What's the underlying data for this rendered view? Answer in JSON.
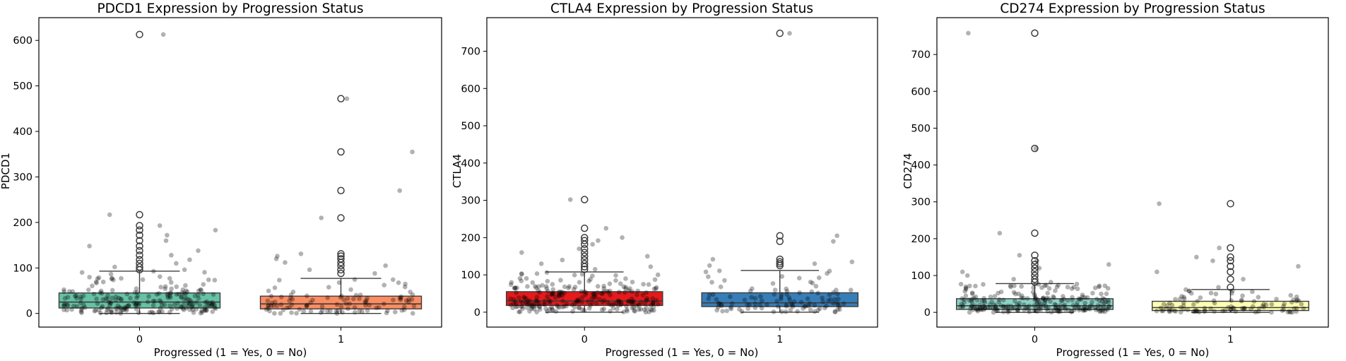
{
  "chart_data": [
    {
      "type": "box",
      "title": "PDCD1 Expression by Progression Status",
      "xlabel": "Progressed (1 = Yes, 0 = No)",
      "ylabel": "PDCD1",
      "categories": [
        "0",
        "1"
      ],
      "ylim": [
        -30,
        650
      ],
      "yticks": [
        0,
        100,
        200,
        300,
        400,
        500,
        600
      ],
      "colors": [
        "#66c2a5",
        "#fc8d62"
      ],
      "boxes": [
        {
          "q1": 12,
          "median": 25,
          "q3": 45,
          "whisker_low": 0,
          "whisker_high": 93,
          "outliers": [
            613,
            217,
            193,
            183,
            172,
            160,
            148,
            138,
            128,
            118,
            110,
            102,
            96
          ]
        },
        {
          "q1": 10,
          "median": 21,
          "q3": 38,
          "whisker_low": 0,
          "whisker_high": 77,
          "outliers": [
            472,
            355,
            270,
            210,
            131,
            126,
            120,
            112,
            105,
            96,
            88
          ]
        }
      ],
      "n_points": [
        230,
        115
      ]
    },
    {
      "type": "box",
      "title": "CTLA4 Expression by Progression Status",
      "xlabel": "Progressed (1 = Yes, 0 = No)",
      "ylabel": "CTLA4",
      "categories": [
        "0",
        "1"
      ],
      "ylim": [
        -40,
        790
      ],
      "yticks": [
        0,
        100,
        200,
        300,
        400,
        500,
        600,
        700
      ],
      "colors": [
        "#e41a1c",
        "#377eb8"
      ],
      "boxes": [
        {
          "q1": 18,
          "median": 30,
          "q3": 55,
          "whisker_low": 0,
          "whisker_high": 108,
          "outliers": [
            302,
            225,
            200,
            192,
            182,
            170,
            160,
            150,
            140,
            130,
            122,
            115
          ]
        },
        {
          "q1": 15,
          "median": 25,
          "q3": 52,
          "whisker_low": 0,
          "whisker_high": 112,
          "outliers": [
            748,
            205,
            190,
            142,
            135,
            130,
            125
          ]
        }
      ],
      "n_points": [
        260,
        115
      ]
    },
    {
      "type": "box",
      "title": "CD274 Expression by Progression Status",
      "xlabel": "Progressed (1 = Yes, 0 = No)",
      "ylabel": "CD274",
      "categories": [
        "0",
        "1"
      ],
      "ylim": [
        -40,
        800
      ],
      "yticks": [
        0,
        100,
        200,
        300,
        400,
        500,
        600,
        700
      ],
      "colors": [
        "#8dd3c7",
        "#ffffb3"
      ],
      "boxes": [
        {
          "q1": 8,
          "median": 18,
          "q3": 37,
          "whisker_low": 0,
          "whisker_high": 78,
          "outliers": [
            758,
            445,
            215,
            155,
            140,
            130,
            120,
            110,
            100,
            90,
            82
          ]
        },
        {
          "q1": 5,
          "median": 13,
          "q3": 30,
          "whisker_low": 0,
          "whisker_high": 62,
          "outliers": [
            295,
            175,
            150,
            140,
            125,
            110,
            90,
            68
          ]
        }
      ],
      "n_points": [
        260,
        110
      ]
    }
  ]
}
